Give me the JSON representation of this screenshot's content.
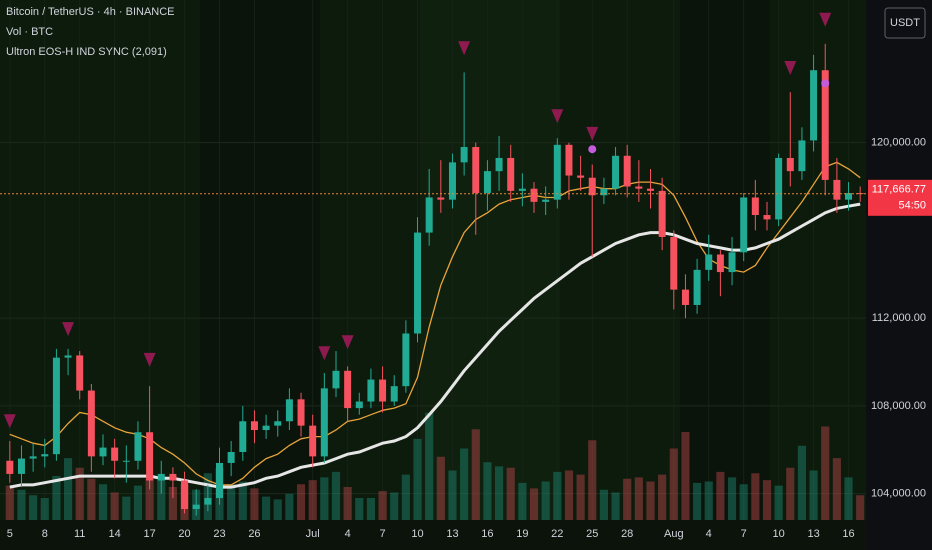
{
  "chart_data": {
    "type": "candlestick",
    "title": "Bitcoin / TetherUS · 4h · BINANCE",
    "indicators": [
      "Vol · BTC",
      "Ultron EOS-H IND SYNC (2,091)"
    ],
    "currency": "USDT",
    "countdown": "54:50",
    "up_color": "#22ab94",
    "down_color": "#f7525f",
    "categories": [
      "5",
      null,
      null,
      "8",
      null,
      null,
      "11",
      null,
      null,
      "14",
      null,
      null,
      "17",
      null,
      null,
      "20",
      null,
      null,
      "23",
      null,
      null,
      "26",
      null,
      null,
      null,
      null,
      "Jul",
      null,
      null,
      "4",
      null,
      null,
      "7",
      null,
      null,
      "10",
      null,
      null,
      "13",
      null,
      null,
      "16",
      null,
      null,
      "19",
      null,
      null,
      "22",
      null,
      null,
      "25",
      null,
      null,
      "28",
      null,
      null,
      null,
      "Aug",
      null,
      null,
      "4",
      null,
      null,
      "7",
      null,
      null,
      "10",
      null,
      null,
      "13",
      null,
      null,
      "16",
      null
    ],
    "open": [
      105500,
      104900,
      105600,
      105700,
      105800,
      110200,
      110300,
      108700,
      105700,
      106100,
      105500,
      105500,
      106800,
      104600,
      104900,
      104600,
      103300,
      103500,
      103800,
      105400,
      105900,
      107300,
      106900,
      107100,
      107300,
      108300,
      107100,
      105700,
      108800,
      109600,
      107900,
      108200,
      109200,
      108200,
      108900,
      111300,
      115900,
      117500,
      117400,
      119100,
      119800,
      117700,
      118700,
      119300,
      117800,
      117900,
      117300,
      117400,
      119900,
      118500,
      118400,
      117600,
      117900,
      119400,
      118000,
      117900,
      117800,
      115700,
      113300,
      112600,
      114200,
      114900,
      114100,
      115000,
      117500,
      116700,
      116500,
      119300,
      118700,
      120100,
      123300,
      118300,
      117400,
      117700
    ],
    "high": [
      106400,
      106200,
      106300,
      106500,
      110600,
      110600,
      110500,
      109000,
      106700,
      106500,
      106200,
      107300,
      108900,
      105500,
      105200,
      105000,
      104200,
      104400,
      106100,
      106400,
      108000,
      107800,
      107600,
      107800,
      108800,
      108600,
      107600,
      109500,
      110500,
      109800,
      108600,
      109700,
      109800,
      109400,
      111900,
      116600,
      118800,
      119200,
      119500,
      123200,
      120000,
      119200,
      120300,
      119900,
      118600,
      118200,
      118000,
      120200,
      120000,
      119400,
      119000,
      118400,
      119800,
      119900,
      119200,
      118800,
      118400,
      116000,
      114000,
      114700,
      115800,
      115100,
      115700,
      117700,
      118300,
      117300,
      119500,
      122300,
      120700,
      124000,
      124500,
      119300,
      118200,
      118000
    ],
    "low": [
      104500,
      104300,
      105000,
      105200,
      105500,
      109400,
      108300,
      105000,
      105300,
      104700,
      104500,
      105100,
      104200,
      104000,
      103800,
      103100,
      103000,
      103200,
      103500,
      104800,
      105500,
      106300,
      106500,
      106600,
      106900,
      106600,
      105200,
      105400,
      108400,
      107300,
      107600,
      107900,
      107700,
      108000,
      108600,
      110900,
      115300,
      116800,
      117000,
      118500,
      115800,
      116900,
      117800,
      117300,
      117100,
      116800,
      116700,
      117000,
      117400,
      117800,
      114800,
      117200,
      117600,
      117500,
      117300,
      117000,
      115100,
      112400,
      112000,
      112200,
      113700,
      113000,
      113500,
      114600,
      116000,
      116000,
      116200,
      118000,
      118300,
      119600,
      117600,
      116800,
      116900,
      117300
    ],
    "close": [
      104900,
      105600,
      105700,
      105800,
      110200,
      110300,
      108700,
      105700,
      106100,
      105500,
      105500,
      106800,
      104600,
      104900,
      104600,
      103300,
      103500,
      103800,
      105400,
      105900,
      107300,
      106900,
      107100,
      107300,
      108300,
      107100,
      105700,
      108800,
      109600,
      107900,
      108200,
      109200,
      108200,
      108900,
      111300,
      115900,
      117500,
      117400,
      119100,
      119800,
      117700,
      118700,
      119300,
      117800,
      117900,
      117300,
      117400,
      119900,
      118500,
      118400,
      117600,
      117900,
      119400,
      118000,
      117900,
      117800,
      115700,
      113300,
      112600,
      114200,
      114900,
      114100,
      115000,
      117500,
      116700,
      116500,
      119300,
      118700,
      120100,
      123300,
      118300,
      117400,
      117700,
      117666.77
    ],
    "lines": [
      {
        "color": "#e8a33a",
        "values": [
          106700,
          106500,
          106300,
          106200,
          106600,
          107200,
          107700,
          107600,
          107300,
          107000,
          106800,
          106700,
          106500,
          106100,
          105800,
          105400,
          104900,
          104600,
          104400,
          104400,
          104700,
          105200,
          105600,
          105800,
          106200,
          106500,
          106600,
          106600,
          106900,
          107300,
          107400,
          107600,
          107800,
          107900,
          108100,
          109300,
          111600,
          113500,
          114800,
          115900,
          116500,
          116800,
          117200,
          117400,
          117500,
          117600,
          117500,
          117500,
          117800,
          117900,
          118000,
          117900,
          117900,
          118100,
          118200,
          118200,
          118100,
          117600,
          116600,
          115500,
          114700,
          114400,
          114200,
          114100,
          114400,
          115200,
          115900,
          116600,
          117300,
          118100,
          118900,
          119100,
          118800,
          118400
        ]
      },
      {
        "color": "#e6e6e6",
        "values": [
          104300,
          104400,
          104400,
          104500,
          104600,
          104700,
          104800,
          104800,
          104800,
          104800,
          104800,
          104800,
          104800,
          104700,
          104700,
          104600,
          104500,
          104400,
          104300,
          104300,
          104400,
          104500,
          104700,
          104800,
          105000,
          105200,
          105300,
          105400,
          105600,
          105800,
          105900,
          106100,
          106300,
          106400,
          106600,
          107000,
          107600,
          108200,
          108900,
          109600,
          110200,
          110800,
          111400,
          111900,
          112400,
          112900,
          113300,
          113700,
          114100,
          114500,
          114800,
          115100,
          115400,
          115600,
          115800,
          115900,
          115900,
          115800,
          115600,
          115400,
          115300,
          115200,
          115100,
          115100,
          115200,
          115400,
          115600,
          115900,
          116200,
          116500,
          116800,
          117000,
          117100,
          117200
        ]
      }
    ],
    "signals": {
      "triangle_color": "#8e1a50",
      "circle_color": "#c45cdc",
      "triangle": [
        107300,
        null,
        null,
        null,
        null,
        111500,
        null,
        null,
        null,
        null,
        null,
        null,
        110100,
        null,
        null,
        null,
        null,
        null,
        null,
        null,
        null,
        null,
        null,
        null,
        null,
        null,
        null,
        110400,
        null,
        110900,
        null,
        null,
        null,
        null,
        null,
        null,
        null,
        null,
        null,
        124300,
        null,
        null,
        null,
        null,
        null,
        null,
        null,
        121200,
        null,
        null,
        120400,
        null,
        null,
        null,
        null,
        null,
        null,
        null,
        null,
        null,
        null,
        null,
        null,
        null,
        null,
        null,
        null,
        123400,
        null,
        null,
        125600,
        null,
        null,
        null
      ],
      "circle": [
        null,
        null,
        null,
        null,
        null,
        null,
        null,
        null,
        null,
        null,
        null,
        null,
        null,
        null,
        null,
        null,
        null,
        null,
        null,
        null,
        null,
        null,
        null,
        null,
        null,
        null,
        null,
        null,
        null,
        null,
        null,
        null,
        null,
        null,
        null,
        null,
        null,
        null,
        null,
        null,
        null,
        null,
        null,
        null,
        null,
        null,
        null,
        null,
        null,
        null,
        119700,
        null,
        null,
        null,
        null,
        null,
        null,
        null,
        null,
        null,
        null,
        null,
        null,
        null,
        null,
        null,
        null,
        null,
        null,
        null,
        122700,
        null,
        null,
        null
      ]
    },
    "volume": {
      "ylim": [
        0,
        16000
      ],
      "values": [
        2500,
        2200,
        1800,
        1600,
        3200,
        4500,
        3800,
        3000,
        2600,
        2000,
        1700,
        2500,
        3000,
        3200,
        2400,
        2600,
        2200,
        3400,
        3800,
        2600,
        2800,
        2300,
        1700,
        1500,
        1900,
        2600,
        2900,
        3100,
        3500,
        2400,
        1600,
        1600,
        2100,
        2000,
        3300,
        5900,
        7800,
        4600,
        3600,
        5200,
        6600,
        4200,
        3900,
        3800,
        2700,
        2300,
        2800,
        3500,
        3600,
        3300,
        5800,
        2200,
        2000,
        3000,
        3100,
        2800,
        3300,
        5200,
        6400,
        2700,
        2800,
        3500,
        3100,
        2600,
        3400,
        2900,
        2500,
        3800,
        5400,
        3600,
        6800,
        4500,
        3100,
        1800
      ]
    },
    "last_price": {
      "value": 117666.77,
      "label": "117,666.77"
    },
    "ylim": [
      102800,
      126500
    ],
    "yticks": [
      {
        "value": 104000,
        "label": "104,000.00"
      },
      {
        "value": 108000,
        "label": "108,000.00"
      },
      {
        "value": 112000,
        "label": "112,000.00"
      },
      {
        "value": 120000,
        "label": "120,000.00"
      }
    ],
    "grid": true
  }
}
